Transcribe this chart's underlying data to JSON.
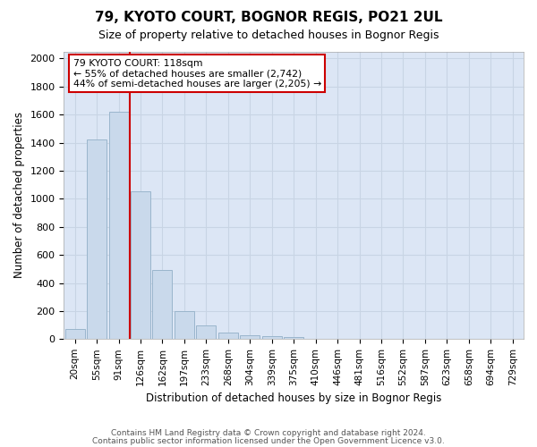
{
  "title": "79, KYOTO COURT, BOGNOR REGIS, PO21 2UL",
  "subtitle": "Size of property relative to detached houses in Bognor Regis",
  "xlabel": "Distribution of detached houses by size in Bognor Regis",
  "ylabel": "Number of detached properties",
  "footer1": "Contains HM Land Registry data © Crown copyright and database right 2024.",
  "footer2": "Contains public sector information licensed under the Open Government Licence v3.0.",
  "bar_labels": [
    "20sqm",
    "55sqm",
    "91sqm",
    "126sqm",
    "162sqm",
    "197sqm",
    "233sqm",
    "268sqm",
    "304sqm",
    "339sqm",
    "375sqm",
    "410sqm",
    "446sqm",
    "481sqm",
    "516sqm",
    "552sqm",
    "587sqm",
    "623sqm",
    "658sqm",
    "694sqm",
    "729sqm"
  ],
  "bar_values": [
    75,
    1420,
    1620,
    1050,
    490,
    200,
    100,
    45,
    25,
    20,
    15,
    0,
    0,
    0,
    0,
    0,
    0,
    0,
    0,
    0,
    0
  ],
  "bar_color": "#c9d9eb",
  "bar_edge_color": "#9ab5cc",
  "grid_color": "#c8d4e4",
  "background_color": "#dce6f5",
  "vline_color": "#cc0000",
  "vline_x_index": 3,
  "annotation_line1": "79 KYOTO COURT: 118sqm",
  "annotation_line2": "← 55% of detached houses are smaller (2,742)",
  "annotation_line3": "44% of semi-detached houses are larger (2,205) →",
  "annotation_box_color": "white",
  "annotation_box_edge_color": "#cc0000",
  "ylim": [
    0,
    2050
  ],
  "yticks": [
    0,
    200,
    400,
    600,
    800,
    1000,
    1200,
    1400,
    1600,
    1800,
    2000
  ]
}
